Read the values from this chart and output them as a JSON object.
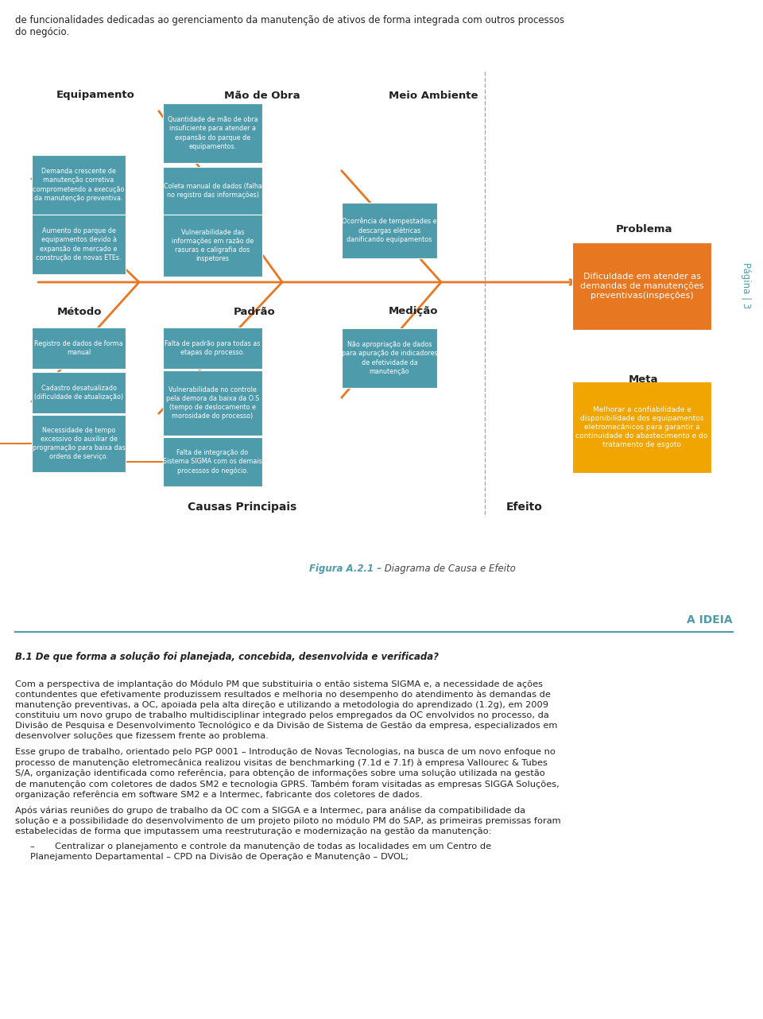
{
  "bg_color": "#ffffff",
  "page_width": 9.6,
  "page_height": 12.82,
  "top_text": "de funcionalidades dedicadas ao gerenciamento da manutenção de ativos de forma integrada com outros processos\ndo negócio.",
  "pagina_text": "Página | 3",
  "teal_color": "#4E9BAC",
  "orange_color": "#E87722",
  "yellow_color": "#F0A500",
  "figura_text_bold": "Figura A.2.1 –",
  "figura_text_normal": " Diagrama de Causa e Efeito",
  "ideia_text": "A IDEIA",
  "section_title": "B.1 De que forma a solução foi planejada, concebida, desenvolvida e verificada?",
  "body_paragraphs": [
    "Com a perspectiva de implantação do Módulo PM que substituiria o então sistema SIGMA e, a necessidade de ações contundentes que efetivamente produzissem resultados e melhoria no desempenho do atendimento às demandas de manutenção preventivas, a OC, apoiada pela alta direção e utilizando a metodologia do aprendizado (1.2g), em 2009 constituiu um novo grupo de trabalho multidisciplinar integrado pelos empregados da OC envolvidos no processo, da Divisão de Pesquisa e Desenvolvimento Tecnológico e da Divisão de Sistema de Gestão da empresa, especializados em desenvolver soluções que fizessem frente ao problema.",
    "Esse grupo de trabalho, orientado pelo PGP 0001 – Introdução de Novas Tecnologias, na busca de um novo enfoque no processo de manutenção eletromecânica realizou visitas de benchmarking (7.1d e 7.1f) à empresa Vallourec & Tubes S/A, organização identificada como referência, para obtenção de informações sobre uma solução utilizada na gestão de manutenção com coletores de dados SM2 e tecnologia GPRS. Também foram visitadas as empresas SIGGA Soluções, organização referência em software SM2 e a Intermec, fabricante dos coletores de dados.",
    "Após várias reuniões do grupo de trabalho da OC com a SIGGA e a Intermec, para análise da compatibilidade da solução e a possibilidade do desenvolvimento de um projeto piloto no módulo PM do SAP, as primeiras premissas foram estabelecidas de forma que imputassem uma reestruturação e modernização na gestão da manutenção:",
    "–\tCentralizar o planejamento e controle da manutenção de todas as localidades em um Centro de Planejamento Departamental – CPD na Divisão de Operação e Manutenção – DVOL;"
  ],
  "ref_highlight": "7.1d e 7.1f"
}
